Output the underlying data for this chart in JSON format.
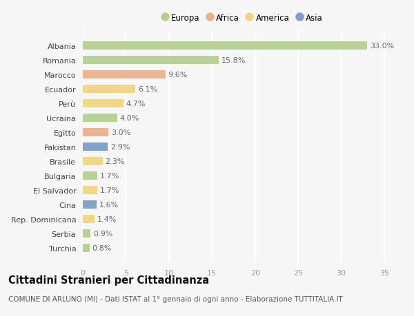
{
  "countries": [
    "Albania",
    "Romania",
    "Marocco",
    "Ecuador",
    "Perù",
    "Ucraina",
    "Egitto",
    "Pakistan",
    "Brasile",
    "Bulgaria",
    "El Salvador",
    "Cina",
    "Rep. Dominicana",
    "Serbia",
    "Turchia"
  ],
  "values": [
    33.0,
    15.8,
    9.6,
    6.1,
    4.7,
    4.0,
    3.0,
    2.9,
    2.3,
    1.7,
    1.7,
    1.6,
    1.4,
    0.9,
    0.8
  ],
  "regions": [
    "Europa",
    "Europa",
    "Africa",
    "America",
    "America",
    "Europa",
    "Africa",
    "Asia",
    "America",
    "Europa",
    "America",
    "Asia",
    "America",
    "Europa",
    "Europa"
  ],
  "region_colors": {
    "Europa": "#aac97e",
    "Africa": "#e8a87c",
    "America": "#f0d070",
    "Asia": "#6b8fbf"
  },
  "legend_order": [
    "Europa",
    "Africa",
    "America",
    "Asia"
  ],
  "title": "Cittadini Stranieri per Cittadinanza",
  "subtitle": "COMUNE DI ARLUNO (MI) - Dati ISTAT al 1° gennaio di ogni anno - Elaborazione TUTTITALIA.IT",
  "xlim": [
    0,
    37
  ],
  "xticks": [
    0,
    5,
    10,
    15,
    20,
    25,
    30,
    35
  ],
  "bg_color": "#f7f7f7",
  "grid_color": "#ffffff",
  "bar_height": 0.55,
  "title_fontsize": 10.5,
  "subtitle_fontsize": 7.5,
  "label_fontsize": 8,
  "tick_fontsize": 8,
  "legend_fontsize": 8.5
}
